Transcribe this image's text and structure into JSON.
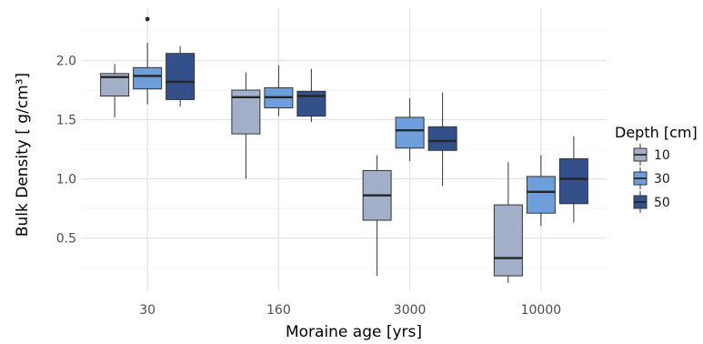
{
  "chart_data": {
    "type": "box",
    "xlabel": "Moraine age [yrs]",
    "ylabel": "Bulk Density [ g/cm³]",
    "ylim": [
      0.05,
      2.45
    ],
    "yticks": [
      "0.5",
      "1.0",
      "1.5",
      "2.0"
    ],
    "grid": true,
    "legend_placement": "right",
    "legend_title": "Depth [cm]",
    "categories": [
      "30",
      "160",
      "3000",
      "10000"
    ],
    "series": [
      {
        "name": "10",
        "color": "#a3aec9",
        "boxes": [
          {
            "min": 1.52,
            "q1": 1.7,
            "median": 1.86,
            "q3": 1.89,
            "max": 1.97,
            "outliers": []
          },
          {
            "min": 1.0,
            "q1": 1.38,
            "median": 1.69,
            "q3": 1.75,
            "max": 1.9,
            "outliers": []
          },
          {
            "min": 0.18,
            "q1": 0.65,
            "median": 0.86,
            "q3": 1.07,
            "max": 1.2,
            "outliers": []
          },
          {
            "min": 0.12,
            "q1": 0.18,
            "median": 0.33,
            "q3": 0.78,
            "max": 1.14,
            "outliers": []
          }
        ]
      },
      {
        "name": "30",
        "color": "#6e9fdb",
        "boxes": [
          {
            "min": 1.63,
            "q1": 1.76,
            "median": 1.87,
            "q3": 1.94,
            "max": 2.15,
            "outliers": [
              2.35
            ]
          },
          {
            "min": 1.53,
            "q1": 1.6,
            "median": 1.69,
            "q3": 1.77,
            "max": 1.96,
            "outliers": []
          },
          {
            "min": 1.15,
            "q1": 1.26,
            "median": 1.41,
            "q3": 1.52,
            "max": 1.68,
            "outliers": []
          },
          {
            "min": 0.6,
            "q1": 0.71,
            "median": 0.89,
            "q3": 1.02,
            "max": 1.2,
            "outliers": []
          }
        ]
      },
      {
        "name": "50",
        "color": "#34508a",
        "boxes": [
          {
            "min": 1.61,
            "q1": 1.67,
            "median": 1.82,
            "q3": 2.06,
            "max": 2.12,
            "outliers": []
          },
          {
            "min": 1.48,
            "q1": 1.53,
            "median": 1.7,
            "q3": 1.74,
            "max": 1.93,
            "outliers": []
          },
          {
            "min": 0.94,
            "q1": 1.24,
            "median": 1.32,
            "q3": 1.44,
            "max": 1.73,
            "outliers": []
          },
          {
            "min": 0.63,
            "q1": 0.79,
            "median": 1.0,
            "q3": 1.17,
            "max": 1.36,
            "outliers": []
          }
        ]
      }
    ]
  }
}
